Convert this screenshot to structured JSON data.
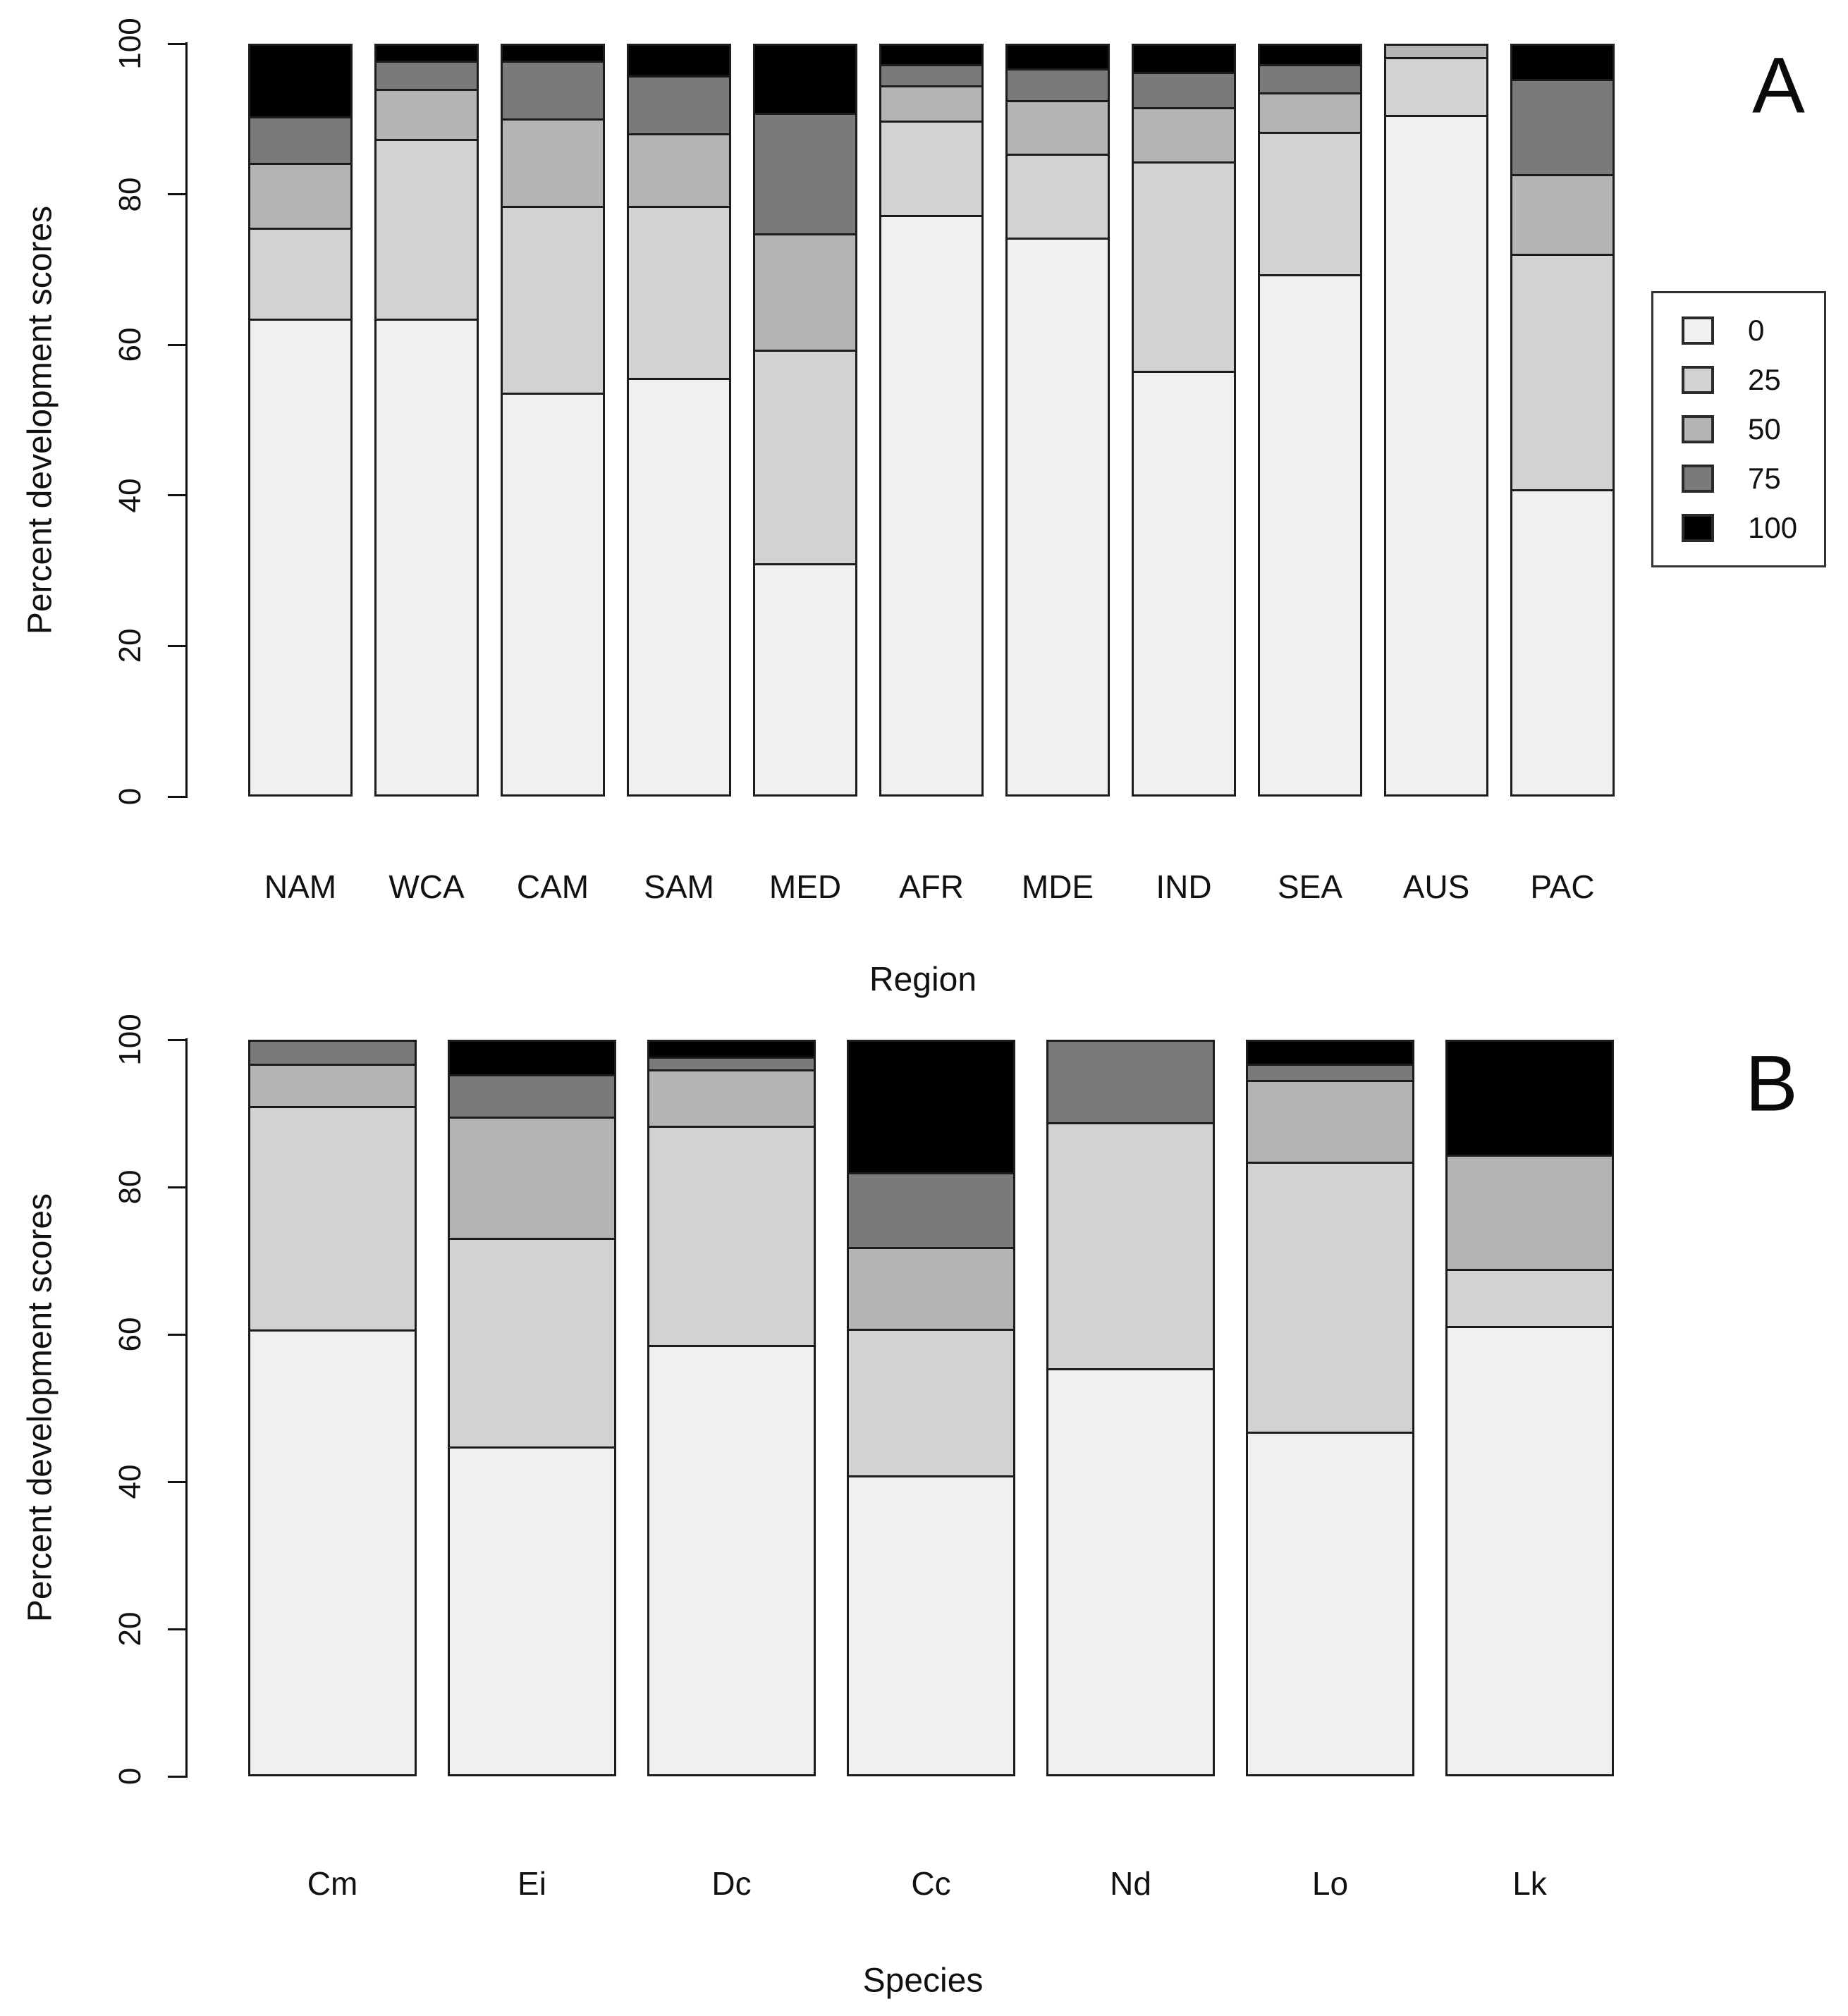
{
  "figure": {
    "panels": [
      {
        "id": "A",
        "letter": "A",
        "xlabel": "Region",
        "ylabel": "Percent development scores"
      },
      {
        "id": "B",
        "letter": "B",
        "xlabel": "Species",
        "ylabel": "Percent development scores"
      }
    ]
  },
  "legend": {
    "entries": [
      {
        "label": "0",
        "color": "#F0F0F0"
      },
      {
        "label": "25",
        "color": "#D2D2D2"
      },
      {
        "label": "50",
        "color": "#B4B4B4"
      },
      {
        "label": "75",
        "color": "#7A7A7A"
      },
      {
        "label": "100",
        "color": "#000000"
      }
    ]
  },
  "chart_data": [
    {
      "type": "bar",
      "stacked": true,
      "panel": "A",
      "title": "",
      "xlabel": "Region",
      "ylabel": "Percent development scores",
      "ylim": [
        0,
        100
      ],
      "yticks": [
        0,
        20,
        40,
        60,
        80,
        100
      ],
      "grid": false,
      "legend_position": "right",
      "categories": [
        "NAM",
        "WCA",
        "CAM",
        "SAM",
        "MED",
        "AFR",
        "MDE",
        "IND",
        "SEA",
        "AUS",
        "PAC"
      ],
      "series": [
        {
          "name": "0",
          "values": [
            64,
            64,
            54,
            56,
            31,
            78,
            75,
            57,
            70,
            91,
            41
          ]
        },
        {
          "name": "25",
          "values": [
            12,
            24,
            25,
            23,
            28.5,
            12.5,
            11,
            28,
            19,
            7.5,
            31.5
          ]
        },
        {
          "name": "50",
          "values": [
            8.5,
            6.5,
            11.5,
            9.5,
            15.5,
            4.5,
            7,
            7,
            5,
            1.5,
            10.5
          ]
        },
        {
          "name": "75",
          "values": [
            6,
            3.5,
            7.5,
            7.5,
            16,
            2.5,
            4,
            4.5,
            3.5,
            0,
            12.5
          ]
        },
        {
          "name": "100",
          "values": [
            9.5,
            2,
            2,
            4,
            9,
            2.5,
            3,
            3.5,
            2.5,
            0,
            4.5
          ]
        }
      ]
    },
    {
      "type": "bar",
      "stacked": true,
      "panel": "B",
      "title": "",
      "xlabel": "Species",
      "ylabel": "Percent development scores",
      "ylim": [
        0,
        100
      ],
      "yticks": [
        0,
        20,
        40,
        60,
        80,
        100
      ],
      "grid": false,
      "categories": [
        "Cm",
        "Ei",
        "Dc",
        "Cc",
        "Nd",
        "Lo",
        "Lk"
      ],
      "series": [
        {
          "name": "0",
          "values": [
            61,
            45,
            59,
            41,
            55.5,
            47,
            61.5
          ]
        },
        {
          "name": "25",
          "values": [
            30.5,
            28.5,
            30,
            20,
            33.5,
            37,
            7.5
          ]
        },
        {
          "name": "50",
          "values": [
            5.5,
            16.5,
            7.5,
            11,
            0,
            11,
            15.5
          ]
        },
        {
          "name": "75",
          "values": [
            3,
            5.5,
            1.5,
            10,
            11,
            2,
            0
          ]
        },
        {
          "name": "100",
          "values": [
            0,
            4.5,
            2,
            18,
            0,
            3,
            15.5
          ]
        }
      ]
    }
  ]
}
